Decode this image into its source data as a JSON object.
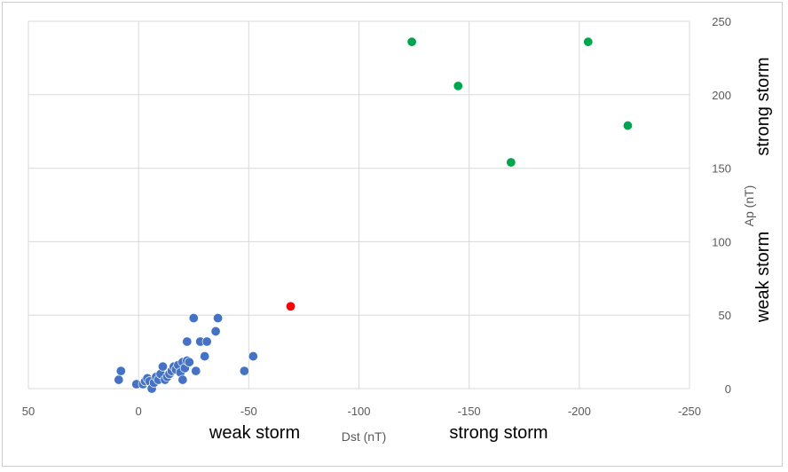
{
  "chart_data": {
    "type": "scatter",
    "xlabel": "Dst (nT)",
    "ylabel": "Ap (nT)",
    "x_reversed": true,
    "xlim": [
      50,
      -250
    ],
    "ylim": [
      0,
      250
    ],
    "x_ticks": [
      "50",
      "0",
      "-50",
      "-100",
      "-150",
      "-200",
      "-250"
    ],
    "y_ticks": [
      "0",
      "50",
      "100",
      "150",
      "200",
      "250"
    ],
    "y_axis_side": "right",
    "grid": true,
    "annotations": {
      "x_weak": "weak storm",
      "x_strong": "strong storm",
      "y_weak": "weak storm",
      "y_strong": "strong storm"
    },
    "series": [
      {
        "color": "#4472c4",
        "points": [
          [
            9,
            6
          ],
          [
            8,
            12
          ],
          [
            1,
            3
          ],
          [
            -2,
            3
          ],
          [
            -3,
            5
          ],
          [
            -4,
            7
          ],
          [
            -5,
            5
          ],
          [
            -6,
            0
          ],
          [
            -7,
            4
          ],
          [
            -8,
            8
          ],
          [
            -9,
            6
          ],
          [
            -10,
            10
          ],
          [
            -11,
            15
          ],
          [
            -12,
            6
          ],
          [
            -13,
            8
          ],
          [
            -14,
            10
          ],
          [
            -15,
            12
          ],
          [
            -16,
            15
          ],
          [
            -17,
            13
          ],
          [
            -18,
            16
          ],
          [
            -19,
            11
          ],
          [
            -20,
            18
          ],
          [
            -20,
            6
          ],
          [
            -21,
            14
          ],
          [
            -22,
            19
          ],
          [
            -22,
            32
          ],
          [
            -23,
            18
          ],
          [
            -25,
            48
          ],
          [
            -26,
            12
          ],
          [
            -28,
            32
          ],
          [
            -30,
            22
          ],
          [
            -31,
            32
          ],
          [
            -35,
            39
          ],
          [
            -36,
            48
          ],
          [
            -48,
            12
          ],
          [
            -52,
            22
          ]
        ]
      },
      {
        "color": "#ff0000",
        "points": [
          [
            -69,
            56
          ]
        ]
      },
      {
        "color": "#00a550",
        "points": [
          [
            -124,
            236
          ],
          [
            -145,
            206
          ],
          [
            -169,
            154
          ],
          [
            -204,
            236
          ],
          [
            -222,
            179
          ]
        ]
      }
    ]
  }
}
